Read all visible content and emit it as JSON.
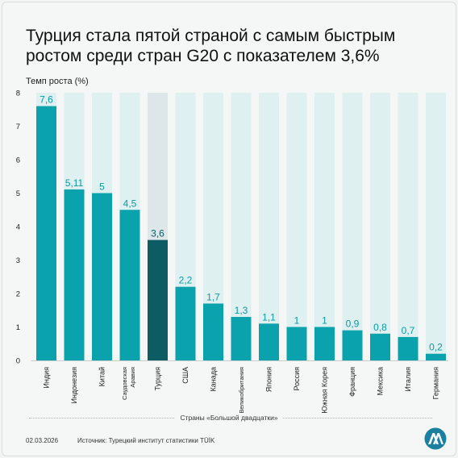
{
  "chart_data": {
    "type": "bar",
    "title": "Турция стала пятой страной с самым быстрым ростом среди стран G20 с показателем 3,6%",
    "ylabel": "Темп роста (%)",
    "xlabel": "Страны «Большой двадцатки»",
    "ylim": [
      0,
      8
    ],
    "yticks": [
      "0",
      "1",
      "2",
      "3",
      "4",
      "5",
      "6",
      "7",
      "8"
    ],
    "categories": [
      "Индия",
      "Индонезия",
      "Китай",
      "Саудовская Аравия",
      "Турция",
      "США",
      "Канада",
      "Великобритания",
      "Япония",
      "Россия",
      "Южная Корея",
      "Франция",
      "Мексика",
      "Италия",
      "Германия"
    ],
    "values": [
      7.6,
      5.11,
      5,
      4.5,
      3.6,
      2.2,
      1.7,
      1.3,
      1.1,
      1,
      1,
      0.9,
      0.8,
      0.7,
      0.2
    ],
    "value_labels": [
      "7,6",
      "5,11",
      "5",
      "4,5",
      "3,6",
      "2,2",
      "1,7",
      "1,3",
      "1,1",
      "1",
      "1",
      "0,9",
      "0,8",
      "0,7",
      "0,2"
    ],
    "highlight_index": 4,
    "grid": false,
    "colors": {
      "bar": "#0aa2ad",
      "bar_highlight": "#0d5b63",
      "label": "#0a9aa5",
      "label_highlight": "#0d5b63",
      "track": "#dff0f0",
      "track_highlight": "#dde6e9"
    }
  },
  "footer": {
    "date": "02.03.2026",
    "source": "Источник: Турецкий институт статистики TÜİK"
  },
  "logo": {
    "icon": "aa-logo-icon",
    "color": "#1a7fa0"
  }
}
